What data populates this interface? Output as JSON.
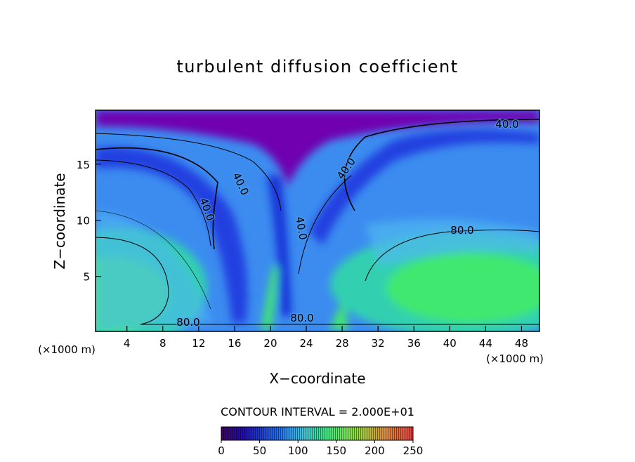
{
  "chart_data": {
    "type": "contour",
    "title": "turbulent diffusion coefficient",
    "x_label": "X−coordinate",
    "y_label": "Z−coordinate",
    "x_unit": "(×1000 m)",
    "xlim": [
      0.5,
      50
    ],
    "ylim": [
      0.1,
      19.8
    ],
    "xticks": [
      4,
      8,
      12,
      16,
      20,
      24,
      28,
      32,
      36,
      40,
      44,
      48
    ],
    "yticks": [
      5,
      10,
      15
    ],
    "contour_labels": [
      {
        "value": 40,
        "label": "40.0"
      },
      {
        "value": 40,
        "label": "40.0"
      },
      {
        "value": 40,
        "label": "40.0"
      },
      {
        "value": 40,
        "label": "40.0"
      },
      {
        "value": 40,
        "label": "40.0"
      },
      {
        "value": 80,
        "label": "80.0"
      },
      {
        "value": 80,
        "label": "80.0"
      },
      {
        "value": 80,
        "label": "80.0"
      }
    ],
    "contour_interval": "CONTOUR INTERVAL = 2.000E+01",
    "colorbar_lim": [
      0,
      250
    ],
    "colorbar_ticks": [
      0,
      50,
      100,
      150,
      200,
      250
    ]
  }
}
